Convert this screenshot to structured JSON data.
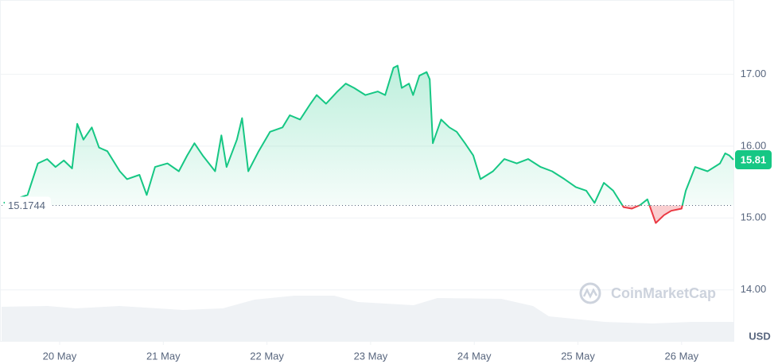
{
  "chart_data": {
    "type": "line",
    "x": [
      19.46,
      19.69,
      19.79,
      19.88,
      19.96,
      20.04,
      20.12,
      20.17,
      20.23,
      20.31,
      20.38,
      20.46,
      20.58,
      20.65,
      20.77,
      20.84,
      20.92,
      21.04,
      21.15,
      21.23,
      21.3,
      21.38,
      21.5,
      21.56,
      21.61,
      21.71,
      21.76,
      21.82,
      21.92,
      22.03,
      22.15,
      22.22,
      22.32,
      22.42,
      22.48,
      22.57,
      22.68,
      22.76,
      22.84,
      22.95,
      23.07,
      23.14,
      23.22,
      23.26,
      23.3,
      23.37,
      23.41,
      23.47,
      23.54,
      23.57,
      23.6,
      23.68,
      23.76,
      23.83,
      23.91,
      23.99,
      24.06,
      24.18,
      24.29,
      24.41,
      24.52,
      24.64,
      24.75,
      24.87,
      24.98,
      25.08,
      25.16,
      25.25,
      25.34,
      25.44,
      25.52,
      25.6,
      25.67,
      25.75,
      25.83,
      25.9,
      26.0,
      26.04,
      26.13,
      26.25,
      26.37,
      26.42,
      26.46,
      26.5
    ],
    "values": [
      15.21,
      15.32,
      15.76,
      15.82,
      15.71,
      15.8,
      15.69,
      16.31,
      16.09,
      16.26,
      15.98,
      15.93,
      15.65,
      15.54,
      15.6,
      15.32,
      15.71,
      15.76,
      15.65,
      15.87,
      16.04,
      15.87,
      15.65,
      16.15,
      15.71,
      16.09,
      16.39,
      15.65,
      15.93,
      16.2,
      16.26,
      16.43,
      16.37,
      16.59,
      16.71,
      16.59,
      16.76,
      16.87,
      16.81,
      16.71,
      16.76,
      16.71,
      17.09,
      17.12,
      16.81,
      16.87,
      16.71,
      16.98,
      17.03,
      16.93,
      16.04,
      16.37,
      16.26,
      16.2,
      16.04,
      15.87,
      15.54,
      15.65,
      15.82,
      15.76,
      15.82,
      15.71,
      15.65,
      15.54,
      15.43,
      15.38,
      15.21,
      15.49,
      15.38,
      15.15,
      15.13,
      15.18,
      15.26,
      14.93,
      15.04,
      15.1,
      15.13,
      15.38,
      15.71,
      15.65,
      15.76,
      15.9,
      15.87,
      15.81
    ],
    "up_color": "#16c784",
    "down_color": "#ea3943",
    "baseline": 15.1744,
    "last_price": 15.81,
    "xlim": [
      19.44,
      26.5
    ],
    "xticks": [
      {
        "value": 20,
        "label": "20 May"
      },
      {
        "value": 21,
        "label": "21 May"
      },
      {
        "value": 22,
        "label": "22 May"
      },
      {
        "value": 23,
        "label": "23 May"
      },
      {
        "value": 24,
        "label": "24 May"
      },
      {
        "value": 25,
        "label": "25 May"
      },
      {
        "value": 26,
        "label": "26 May"
      }
    ],
    "ylim": [
      13.3,
      18.0
    ],
    "yticks": [
      {
        "value": 14,
        "label": "14.00"
      },
      {
        "value": 15,
        "label": "15.00"
      },
      {
        "value": 16,
        "label": "16.00"
      },
      {
        "value": 17,
        "label": "17.00"
      }
    ],
    "y_unit": "USD",
    "watermark": "CoinMarketCap",
    "grid": true
  }
}
